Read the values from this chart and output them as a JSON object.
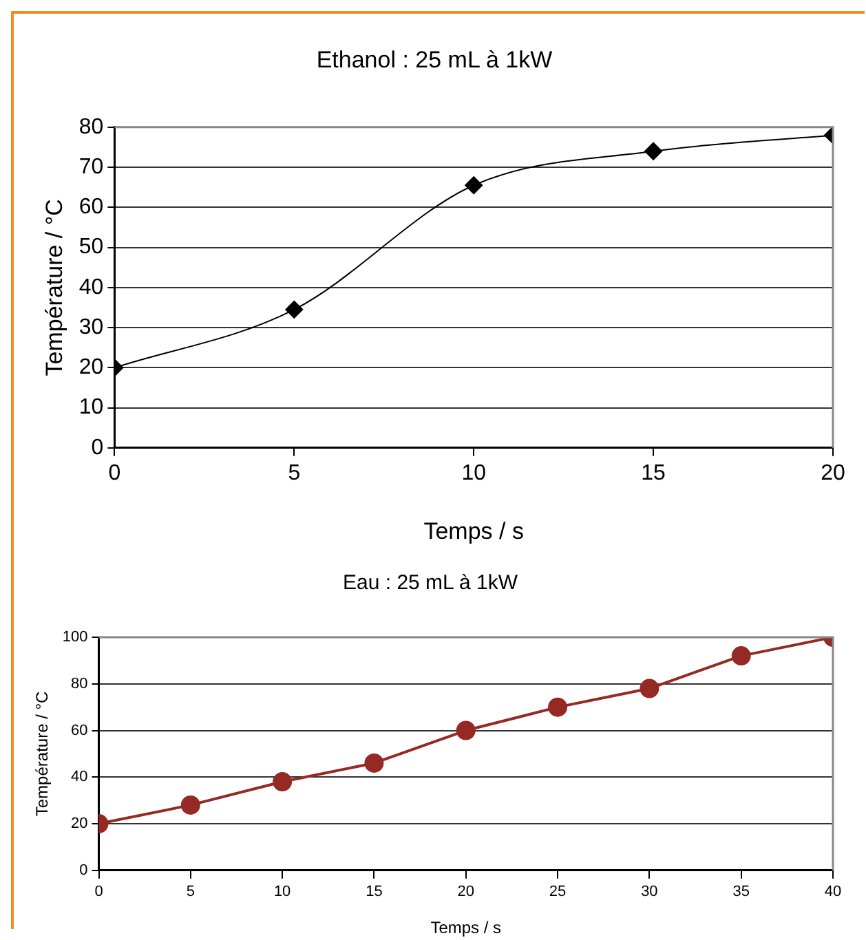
{
  "chart_data": [
    {
      "type": "line",
      "title": "Ethanol : 25 mL à 1kW",
      "xlabel": "Temps / s",
      "ylabel": "Température / °C",
      "x": [
        0,
        5,
        10,
        15,
        20
      ],
      "series": [
        {
          "color": "#000000",
          "values": [
            20,
            34.5,
            65.5,
            74,
            78
          ]
        }
      ],
      "xlim": [
        0,
        20
      ],
      "xticks": [
        0,
        5,
        10,
        15,
        20
      ],
      "ylim": [
        0,
        80
      ],
      "yticks": [
        0,
        10,
        20,
        30,
        40,
        50,
        60,
        70,
        80
      ],
      "grid": "y",
      "legend": false,
      "marker": "diamond",
      "line_style": "solid"
    },
    {
      "type": "line",
      "title": "Eau : 25 mL à 1kW",
      "xlabel": "Temps / s",
      "ylabel": "Température / °C",
      "x": [
        0,
        5,
        10,
        15,
        20,
        25,
        30,
        35,
        40
      ],
      "series": [
        {
          "color": "#952a24",
          "values": [
            20,
            28,
            38,
            46,
            60,
            70,
            78,
            92,
            100
          ]
        }
      ],
      "xlim": [
        0,
        40
      ],
      "xticks": [
        0,
        5,
        10,
        15,
        20,
        25,
        30,
        35,
        40
      ],
      "ylim": [
        0,
        100
      ],
      "yticks": [
        0,
        20,
        40,
        60,
        80,
        100
      ],
      "grid": "y",
      "legend": false,
      "marker": "circle",
      "line_style": "solid"
    }
  ]
}
